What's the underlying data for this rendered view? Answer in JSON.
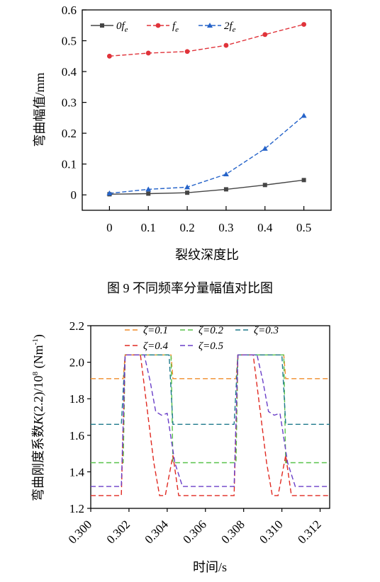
{
  "chart_data": [
    {
      "type": "line",
      "title": "",
      "xlabel": "裂纹深度比",
      "ylabel": "弯曲幅值/mm",
      "x": [
        0,
        0.1,
        0.2,
        0.3,
        0.4,
        0.5
      ],
      "x_ticks": [
        "0",
        "0.1",
        "0.2",
        "0.3",
        "0.4",
        "0.5"
      ],
      "xlim": [
        -0.07,
        0.57
      ],
      "y_ticks": [
        "0",
        "0.1",
        "0.2",
        "0.3",
        "0.4",
        "0.5",
        "0.6"
      ],
      "ylim": [
        -0.05,
        0.6
      ],
      "legend_position": "top",
      "series": [
        {
          "name": "0f",
          "sub": "e",
          "color": "#454545",
          "marker": "square",
          "dash": "solid",
          "values": [
            0.002,
            0.004,
            0.007,
            0.018,
            0.032,
            0.048
          ]
        },
        {
          "name": "f",
          "sub": "e",
          "color": "#e0333a",
          "marker": "circle",
          "dash": "dash",
          "values": [
            0.45,
            0.46,
            0.465,
            0.485,
            0.52,
            0.553
          ]
        },
        {
          "name": "2f",
          "sub": "e",
          "color": "#2563c9",
          "marker": "triangle",
          "dash": "dash",
          "values": [
            0.005,
            0.018,
            0.025,
            0.067,
            0.15,
            0.257
          ]
        }
      ]
    },
    {
      "type": "line",
      "title": "",
      "xlabel": "时间/s",
      "ylabel": "弯曲刚度系数K(2.2)/10⁸ (Nm⁻¹)",
      "ylabel_parts": {
        "a": "弯曲刚度系数",
        "b": "K",
        "c": "(2.2)/10",
        "d": "8",
        "e": " (Nm",
        "f": "-1",
        "g": ")"
      },
      "x_ticks": [
        "0.300",
        "0.302",
        "0.304",
        "0.306",
        "0.308",
        "0.310",
        "0.312"
      ],
      "xlim": [
        0.3,
        0.3125
      ],
      "y_ticks": [
        "1.2",
        "1.4",
        "1.6",
        "1.8",
        "2.0",
        "2.2"
      ],
      "ylim": [
        1.2,
        2.2
      ],
      "legend_position": "top",
      "series": [
        {
          "name": "ζ=0.1",
          "color": "#f08c2a",
          "values_x": [
            0.3,
            0.3017,
            0.3018,
            0.3042,
            0.3043,
            0.3076,
            0.3077,
            0.3101,
            0.3102,
            0.3125
          ],
          "values": [
            1.91,
            1.91,
            2.04,
            2.04,
            1.91,
            1.91,
            2.04,
            2.04,
            1.91,
            1.91
          ]
        },
        {
          "name": "ζ=0.2",
          "color": "#58c24a",
          "values_x": [
            0.3,
            0.3017,
            0.3018,
            0.3042,
            0.3043,
            0.3076,
            0.3077,
            0.3101,
            0.3102,
            0.3125
          ],
          "values": [
            1.45,
            1.45,
            2.04,
            2.04,
            1.45,
            1.45,
            2.04,
            2.04,
            1.45,
            1.45
          ]
        },
        {
          "name": "ζ=0.3",
          "color": "#1f7a8c",
          "values_x": [
            0.3,
            0.3016,
            0.3018,
            0.3041,
            0.3043,
            0.3075,
            0.3077,
            0.31,
            0.3102,
            0.3125
          ],
          "values": [
            1.66,
            1.66,
            2.04,
            2.04,
            1.66,
            1.66,
            2.04,
            2.04,
            1.66,
            1.66
          ]
        },
        {
          "name": "ζ=0.4",
          "color": "#e02a22",
          "values_x": [
            0.3,
            0.3016,
            0.3018,
            0.3026,
            0.3033,
            0.3036,
            0.3039,
            0.3043,
            0.3046,
            0.3049,
            0.3075,
            0.3077,
            0.3085,
            0.3092,
            0.3095,
            0.3098,
            0.3102,
            0.3105,
            0.3108,
            0.3125
          ],
          "values": [
            1.27,
            1.27,
            2.04,
            2.04,
            1.45,
            1.27,
            1.27,
            1.49,
            1.27,
            1.27,
            1.27,
            2.04,
            2.04,
            1.45,
            1.27,
            1.27,
            1.49,
            1.27,
            1.27,
            1.27
          ]
        },
        {
          "name": "ζ=0.5",
          "color": "#6a3fc8",
          "values_x": [
            0.3,
            0.3016,
            0.3018,
            0.3028,
            0.3031,
            0.3034,
            0.3037,
            0.304,
            0.3044,
            0.3048,
            0.3075,
            0.3077,
            0.3087,
            0.309,
            0.3093,
            0.3096,
            0.3099,
            0.3103,
            0.3107,
            0.3125
          ],
          "values": [
            1.32,
            1.32,
            2.04,
            2.04,
            1.9,
            1.73,
            1.71,
            1.72,
            1.45,
            1.32,
            1.32,
            2.04,
            2.04,
            1.9,
            1.73,
            1.71,
            1.72,
            1.45,
            1.32,
            1.32
          ]
        }
      ]
    }
  ],
  "caption1": "图 9  不同频率分量幅值对比图"
}
